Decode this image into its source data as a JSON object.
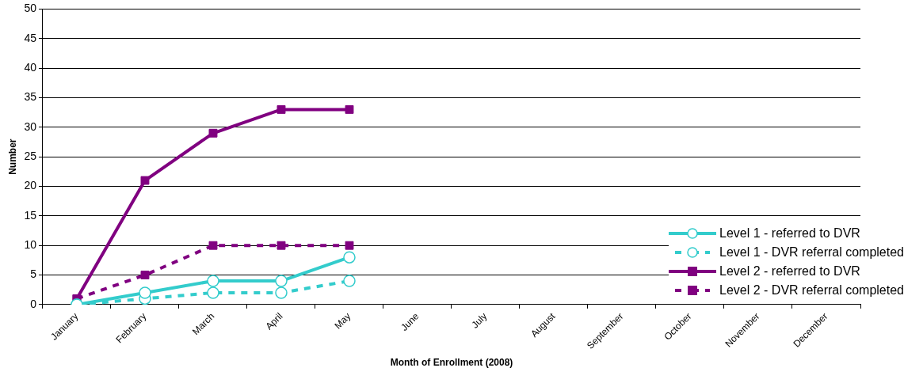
{
  "chart_data": {
    "type": "line",
    "xlabel": "Month of Enrollment (2008)",
    "ylabel": "Number",
    "categories": [
      "January",
      "February",
      "March",
      "April",
      "May",
      "June",
      "July",
      "August",
      "September",
      "October",
      "November",
      "December"
    ],
    "series": [
      {
        "name": "Level 1 - referred to DVR",
        "color": "#33cccc",
        "marker": "circle",
        "line_style": "solid",
        "values": [
          0,
          2,
          4,
          4,
          8,
          null,
          null,
          null,
          null,
          null,
          null,
          null
        ]
      },
      {
        "name": "Level 1 - DVR referral completed",
        "color": "#33cccc",
        "marker": "circle",
        "line_style": "dashed",
        "values": [
          0,
          1,
          2,
          2,
          4,
          null,
          null,
          null,
          null,
          null,
          null,
          null
        ]
      },
      {
        "name": "Level 2 - referred to DVR",
        "color": "#800080",
        "marker": "square",
        "line_style": "solid",
        "values": [
          1,
          21,
          29,
          33,
          33,
          null,
          null,
          null,
          null,
          null,
          null,
          null
        ]
      },
      {
        "name": "Level 2 - DVR referral completed",
        "color": "#800080",
        "marker": "square",
        "line_style": "dashed",
        "values": [
          1,
          5,
          10,
          10,
          10,
          null,
          null,
          null,
          null,
          null,
          null,
          null
        ]
      }
    ],
    "ylim": [
      0,
      50
    ],
    "yticks": [
      0,
      5,
      10,
      15,
      20,
      25,
      30,
      35,
      40,
      45,
      50
    ],
    "grid": "y",
    "legend": "bottom right"
  }
}
